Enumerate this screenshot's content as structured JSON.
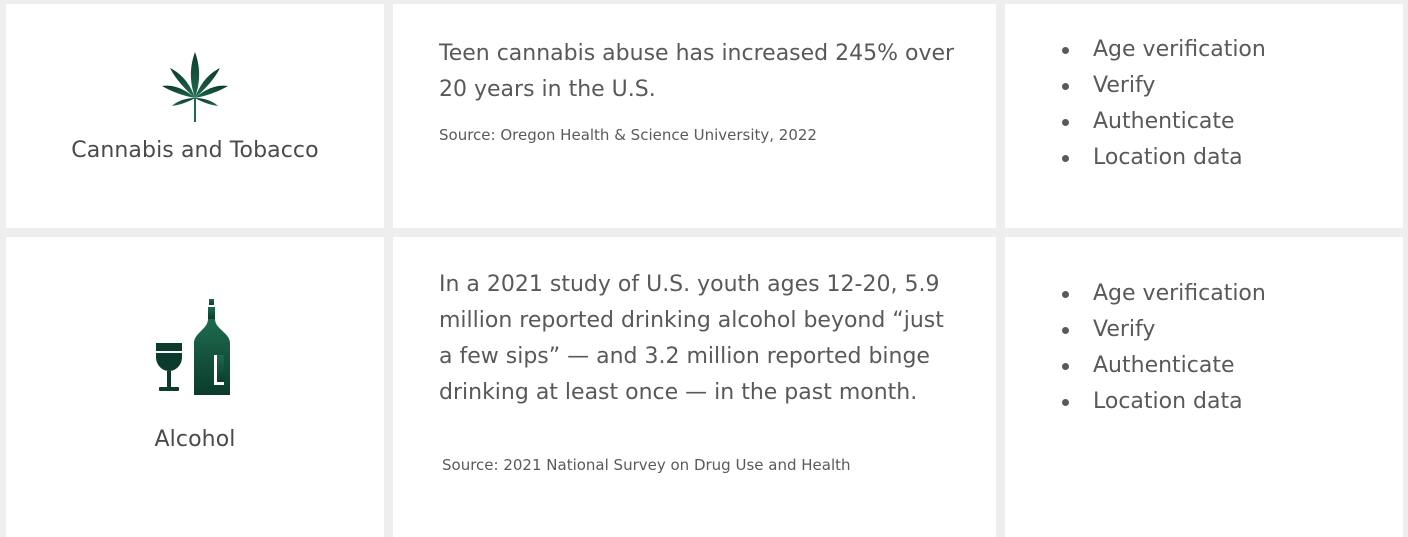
{
  "rows": [
    {
      "category": {
        "icon": "cannabis-leaf-icon",
        "label": "Cannabis and Tobacco"
      },
      "stat": {
        "text": "Teen cannabis abuse has increased 245% over 20 years in the U.S.",
        "source": "Source: Oregon Health & Science University, 2022"
      },
      "solutions": [
        "Age verification",
        "Verify",
        "Authenticate",
        "Location data"
      ]
    },
    {
      "category": {
        "icon": "wine-bottle-and-glass-icon",
        "label": "Alcohol"
      },
      "stat": {
        "text": "In a 2021 study of U.S. youth ages 12-20, 5.9 million reported drinking alcohol beyond “just a few sips” — and 3.2 million reported binge drinking at least once — in the past month.",
        "source": "Source: 2021 National Survey on Drug Use and Health"
      },
      "solutions": [
        "Age verification",
        "Verify",
        "Authenticate",
        "Location data"
      ]
    }
  ],
  "colors": {
    "page_background": "#eeeeee",
    "card_background": "#ffffff",
    "text": "#595959",
    "icon_green_dark": "#0b3b2c",
    "icon_green_light": "#1e6b4f"
  }
}
